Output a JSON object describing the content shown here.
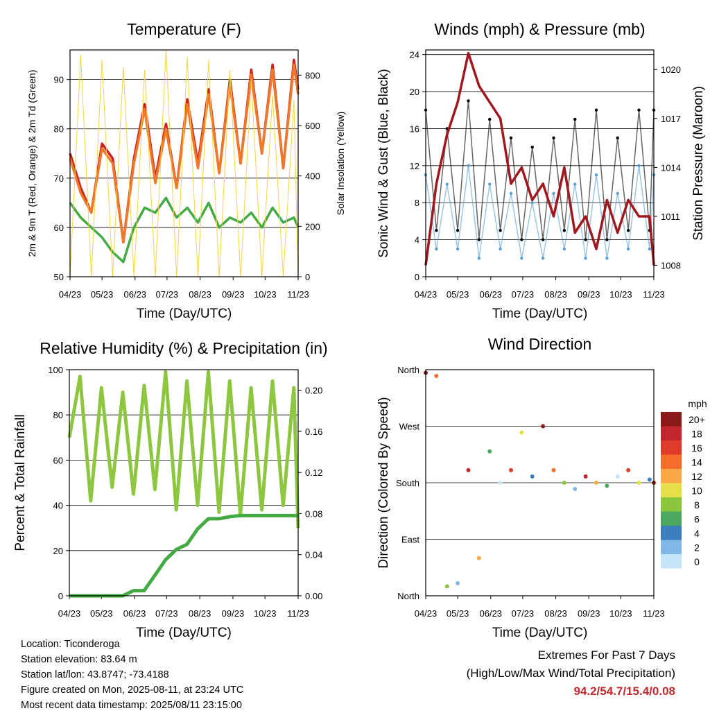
{
  "x_ticks": [
    "04/23",
    "05/23",
    "06/23",
    "07/23",
    "08/23",
    "09/23",
    "10/23",
    "11/23"
  ],
  "chart_data": [
    {
      "type": "line",
      "title": "Temperature (F)",
      "xlabel": "Time (Day/UTC)",
      "ylabel": "2m & 9m T (Red, Orange) & 2m Td (Green)",
      "ylabel_right": "Solar Insolation (Yellow)",
      "ylim": [
        50,
        96
      ],
      "ylim_right": [
        0,
        900
      ],
      "yticks": [
        50,
        60,
        70,
        80,
        90
      ],
      "yticks_right": [
        0,
        200,
        400,
        600,
        800
      ],
      "x": [
        "04/23",
        "05/03",
        "05/13",
        "05/23",
        "06/02",
        "06/12",
        "06/22",
        "07/02",
        "07/12",
        "07/22",
        "08/01",
        "08/11",
        "08/21",
        "08/31",
        "09/10",
        "09/20",
        "09/30",
        "10/10",
        "10/20",
        "10/30",
        "11/09",
        "11/19",
        "11/23"
      ],
      "series": [
        {
          "color": "#cc2020",
          "values": [
            75,
            68,
            63,
            77,
            74,
            57,
            74,
            85,
            70,
            81,
            68,
            86,
            73,
            88,
            71,
            90,
            73,
            92,
            75,
            93,
            72,
            94,
            88
          ]
        },
        {
          "color": "#f07828",
          "values": [
            74,
            67,
            63,
            76,
            73,
            57,
            73,
            84,
            69,
            80,
            68,
            85,
            72,
            87,
            71,
            89,
            73,
            91,
            75,
            92,
            72,
            93,
            87
          ]
        },
        {
          "color": "#44aa44",
          "values": [
            65,
            62,
            60,
            58,
            55,
            53,
            60,
            64,
            63,
            66,
            62,
            64,
            61,
            65,
            60,
            62,
            61,
            63,
            60,
            64,
            61,
            62,
            60
          ]
        },
        {
          "color": "#f4d442",
          "values": [
            0,
            880,
            0,
            860,
            0,
            830,
            0,
            820,
            0,
            900,
            0,
            870,
            0,
            860,
            0,
            820,
            0,
            780,
            0,
            720,
            0,
            700,
            0
          ]
        }
      ]
    },
    {
      "type": "scatter",
      "title": "Winds (mph) & Pressure (mb)",
      "xlabel": "Time (Day/UTC)",
      "ylabel": "Sonic Wind & Gust (Blue, Black)",
      "ylabel_right": "Station Pressure (Maroon)",
      "ylim": [
        0,
        24.5
      ],
      "ylim_right": [
        1007.3,
        1021.2
      ],
      "yticks": [
        0,
        4,
        8,
        12,
        16,
        20,
        24
      ],
      "yticks_right": [
        1008,
        1011,
        1014,
        1017,
        1020
      ],
      "x": [
        "04/23",
        "05/03",
        "05/13",
        "05/23",
        "06/02",
        "06/12",
        "06/22",
        "07/02",
        "07/12",
        "07/22",
        "08/01",
        "08/11",
        "08/21",
        "08/31",
        "09/10",
        "09/20",
        "09/30",
        "10/10",
        "10/20",
        "10/30",
        "11/09",
        "11/19",
        "11/23"
      ],
      "series": [
        {
          "color": "#5a9fd4",
          "values": [
            11,
            3,
            10,
            3,
            12,
            2,
            10,
            3,
            9,
            2,
            8,
            2,
            9,
            3,
            10,
            2,
            11,
            2,
            9,
            3,
            12,
            3,
            11
          ]
        },
        {
          "color": "#000000",
          "values": [
            18,
            5,
            16,
            5,
            19,
            4,
            17,
            5,
            15,
            4,
            14,
            4,
            15,
            5,
            17,
            4,
            18,
            4,
            15,
            5,
            18,
            5,
            18
          ]
        },
        {
          "color": "#a0171e",
          "values": [
            1008,
            1013,
            1016,
            1018,
            1021,
            1019,
            1018,
            1017,
            1013,
            1014,
            1012,
            1013,
            1011,
            1014,
            1010,
            1011,
            1009,
            1012,
            1010,
            1012,
            1011,
            1011,
            1008
          ]
        }
      ]
    },
    {
      "type": "line",
      "title": "Relative Humidity (%) & Precipitation (in)",
      "xlabel": "Time (Day/UTC)",
      "ylabel": "Percent & Total Rainfall",
      "ylim": [
        0,
        100
      ],
      "ylim_right": [
        0,
        0.22
      ],
      "yticks": [
        0,
        20,
        40,
        60,
        80,
        100
      ],
      "yticks_right": [
        "0.00",
        "0.04",
        "0.08",
        "0.12",
        "0.16",
        "0.20"
      ],
      "x": [
        "04/23",
        "05/03",
        "05/13",
        "05/23",
        "06/02",
        "06/12",
        "06/22",
        "07/02",
        "07/12",
        "07/22",
        "08/01",
        "08/11",
        "08/21",
        "08/31",
        "09/10",
        "09/20",
        "09/30",
        "10/10",
        "10/20",
        "10/30",
        "11/09",
        "11/19",
        "11/23"
      ],
      "series": [
        {
          "color": "#8dc63f",
          "values": [
            70,
            97,
            42,
            92,
            48,
            90,
            45,
            93,
            47,
            99,
            38,
            95,
            40,
            99,
            37,
            95,
            36,
            92,
            38,
            95,
            40,
            92,
            30
          ]
        },
        {
          "color": "#44aa44",
          "values": [
            0,
            0,
            0,
            0,
            0,
            0,
            0.005,
            0.005,
            0.02,
            0.035,
            0.045,
            0.05,
            0.065,
            0.075,
            0.075,
            0.077,
            0.078,
            0.078,
            0.078,
            0.078,
            0.078,
            0.078,
            0.078
          ]
        }
      ]
    },
    {
      "type": "scatter",
      "title": "Wind Direction",
      "xlabel": "Time (Day/UTC)",
      "ylabel": "Direction (Colored By Speed)",
      "ylim": [
        0,
        360
      ],
      "ytick_labels": [
        "North",
        "East",
        "South",
        "West",
        "North"
      ],
      "legend_title": "mph",
      "legend_labels": [
        "20+",
        "18",
        "16",
        "14",
        "12",
        "10",
        "8",
        "6",
        "4",
        "2",
        "0"
      ],
      "legend_colors": [
        "#8b1a1a",
        "#c0282d",
        "#e03a2b",
        "#f46d2b",
        "#fba948",
        "#e5e04a",
        "#8cc63f",
        "#4ca861",
        "#3b7fbf",
        "#7fb8e6",
        "#c5e4f7"
      ],
      "x": [
        "04/23",
        "05/03",
        "05/13",
        "05/23",
        "06/02",
        "06/12",
        "06/22",
        "07/02",
        "07/12",
        "07/22",
        "08/01",
        "08/11",
        "08/21",
        "08/31",
        "09/10",
        "09/20",
        "09/30",
        "10/10",
        "10/20",
        "10/30",
        "11/09",
        "11/19",
        "11/23"
      ],
      "values": [
        355,
        350,
        15,
        20,
        200,
        60,
        230,
        180,
        200,
        260,
        190,
        270,
        200,
        180,
        170,
        190,
        180,
        175,
        190,
        200,
        180,
        185,
        180
      ]
    }
  ],
  "info": {
    "location": "Location: Ticonderoga",
    "elevation": "Station elevation: 83.64 m",
    "latlon": "Station lat/lon: 43.8747; -73.4188",
    "created": "Figure created on Mon, 2025-08-11, at 23:24 UTC",
    "recent": "Most recent data timestamp: 2025/08/11 23:15:00"
  },
  "extremes": {
    "line1": "Extremes For Past 7 Days",
    "line2": "(High/Low/Max Wind/Total Precipitation)",
    "values": "94.2/54.7/15.4/0.08"
  }
}
